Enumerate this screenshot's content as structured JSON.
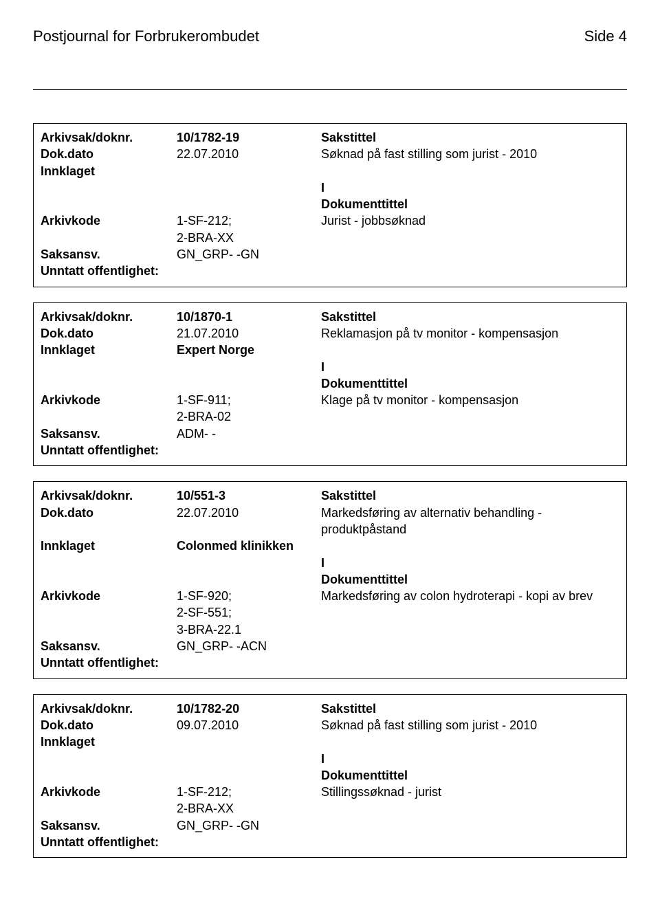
{
  "header": {
    "title": "Postjournal for Forbrukerombudet",
    "page_label": "Side 4"
  },
  "labels": {
    "arkivsak": "Arkivsak/doknr.",
    "dokdato": "Dok.dato",
    "innklaget": "Innklaget",
    "arkivkode": "Arkivkode",
    "saksansv": "Saksansv.",
    "unntatt": "Unntatt offentlighet:",
    "sakstittel": "Sakstittel",
    "dokumenttittel": "Dokumenttittel"
  },
  "records": [
    {
      "doknr": "10/1782-19",
      "dokdato": "22.07.2010",
      "sakstittel_text": "Søknad på fast stilling som jurist - 2010",
      "innklaget": "",
      "io": "I",
      "arkivkode": "1-SF-212; 2-BRA-XX",
      "dokumenttittel_text": "Jurist - jobbsøknad",
      "saksansv": "GN_GRP- -GN"
    },
    {
      "doknr": "10/1870-1",
      "dokdato": "21.07.2010",
      "sakstittel_text": "Reklamasjon på tv monitor - kompensasjon",
      "innklaget": "Expert Norge",
      "io": "I",
      "arkivkode": "1-SF-911; 2-BRA-02",
      "dokumenttittel_text": "Klage på tv monitor - kompensasjon",
      "saksansv": "ADM- -"
    },
    {
      "doknr": "10/551-3",
      "dokdato": "22.07.2010",
      "sakstittel_text": "Markedsføring av alternativ behandling - produktpåstand",
      "innklaget": "Colonmed klinikken",
      "io": "I",
      "arkivkode": "1-SF-920; 2-SF-551; 3-BRA-22.1",
      "dokumenttittel_text": "Markedsføring av colon hydroterapi - kopi av brev",
      "saksansv": "GN_GRP- -ACN"
    },
    {
      "doknr": "10/1782-20",
      "dokdato": "09.07.2010",
      "sakstittel_text": "Søknad på fast stilling som jurist - 2010",
      "innklaget": "",
      "io": "I",
      "arkivkode": "1-SF-212; 2-BRA-XX",
      "dokumenttittel_text": "Stillingssøknad - jurist",
      "saksansv": "GN_GRP- -GN"
    }
  ]
}
